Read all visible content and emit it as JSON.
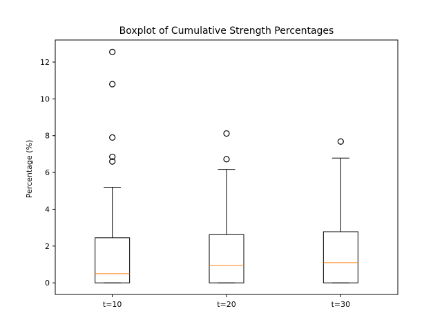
{
  "chart_data": {
    "type": "boxplot",
    "title": "Boxplot of Cumulative Strength Percentages",
    "xlabel": "",
    "ylabel": "Percentage (%)",
    "ylim": [
      -0.63,
      13.2
    ],
    "yticks": [
      0,
      2,
      4,
      6,
      8,
      10,
      12
    ],
    "categories": [
      "t=10",
      "t=20",
      "t=30"
    ],
    "boxes": [
      {
        "category": "t=10",
        "whisker_low": 0,
        "q1": 0,
        "median": 0.5,
        "q3": 2.45,
        "whisker_high": 5.2,
        "outliers": [
          6.6,
          6.85,
          7.9,
          10.8,
          12.55
        ]
      },
      {
        "category": "t=20",
        "whisker_low": 0,
        "q1": 0,
        "median": 0.95,
        "q3": 2.62,
        "whisker_high": 6.17,
        "outliers": [
          6.72,
          8.12
        ]
      },
      {
        "category": "t=30",
        "whisker_low": 0,
        "q1": 0,
        "median": 1.1,
        "q3": 2.78,
        "whisker_high": 6.78,
        "outliers": [
          7.68
        ]
      }
    ],
    "grid": false,
    "colors": {
      "box": "#000000",
      "median": "#ff7f0e",
      "outlier": "#000000"
    }
  }
}
